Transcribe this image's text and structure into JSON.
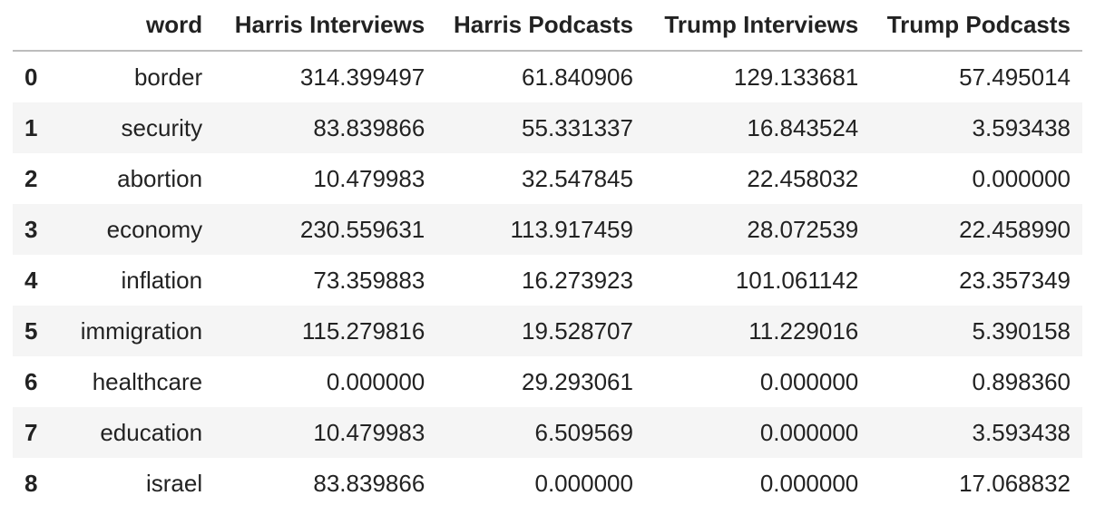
{
  "table": {
    "index_header": "",
    "columns": [
      "word",
      "Harris Interviews",
      "Harris Podcasts",
      "Trump Interviews",
      "Trump Podcasts"
    ],
    "rows": [
      {
        "index": "0",
        "word": "border",
        "harris_interviews": "314.399497",
        "harris_podcasts": "61.840906",
        "trump_interviews": "129.133681",
        "trump_podcasts": "57.495014"
      },
      {
        "index": "1",
        "word": "security",
        "harris_interviews": "83.839866",
        "harris_podcasts": "55.331337",
        "trump_interviews": "16.843524",
        "trump_podcasts": "3.593438"
      },
      {
        "index": "2",
        "word": "abortion",
        "harris_interviews": "10.479983",
        "harris_podcasts": "32.547845",
        "trump_interviews": "22.458032",
        "trump_podcasts": "0.000000"
      },
      {
        "index": "3",
        "word": "economy",
        "harris_interviews": "230.559631",
        "harris_podcasts": "113.917459",
        "trump_interviews": "28.072539",
        "trump_podcasts": "22.458990"
      },
      {
        "index": "4",
        "word": "inflation",
        "harris_interviews": "73.359883",
        "harris_podcasts": "16.273923",
        "trump_interviews": "101.061142",
        "trump_podcasts": "23.357349"
      },
      {
        "index": "5",
        "word": "immigration",
        "harris_interviews": "115.279816",
        "harris_podcasts": "19.528707",
        "trump_interviews": "11.229016",
        "trump_podcasts": "5.390158"
      },
      {
        "index": "6",
        "word": "healthcare",
        "harris_interviews": "0.000000",
        "harris_podcasts": "29.293061",
        "trump_interviews": "0.000000",
        "trump_podcasts": "0.898360"
      },
      {
        "index": "7",
        "word": "education",
        "harris_interviews": "10.479983",
        "harris_podcasts": "6.509569",
        "trump_interviews": "0.000000",
        "trump_podcasts": "3.593438"
      },
      {
        "index": "8",
        "word": "israel",
        "harris_interviews": "83.839866",
        "harris_podcasts": "0.000000",
        "trump_interviews": "0.000000",
        "trump_podcasts": "17.068832"
      }
    ]
  },
  "colors": {
    "text": "#222222",
    "stripe": "#f5f5f5",
    "header_rule": "#bdbdbd",
    "background": "#ffffff"
  }
}
